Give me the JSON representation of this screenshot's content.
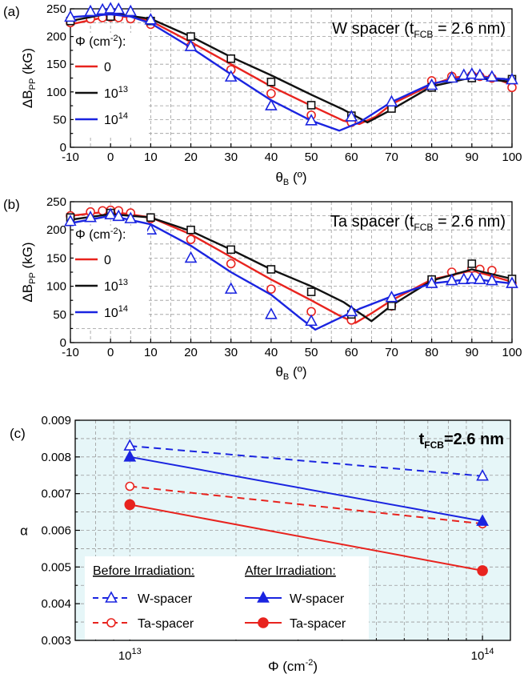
{
  "chart_data": [
    {
      "type": "line",
      "panel_label": "(a)",
      "title": "W spacer (t",
      "title_sub": "FCB",
      "title_tail": " = 2.6 nm)",
      "legend_title": "Φ (cm",
      "legend_title_sup": "-2",
      "legend_title_tail": "):",
      "ylabel": "ΔB",
      "ylabel_sub": "PP",
      "ylabel_tail": " (kG)",
      "xlabel": "θ",
      "xlabel_sub": "B",
      "xlabel_tail": " (º)",
      "xlim": [
        -10,
        100
      ],
      "ylim": [
        0,
        250
      ],
      "xticks": [
        -10,
        0,
        10,
        20,
        30,
        40,
        50,
        60,
        70,
        80,
        90,
        100
      ],
      "yticks": [
        0,
        25,
        50,
        75,
        100,
        125,
        150,
        175,
        200,
        225,
        250
      ],
      "ytick_labels": [
        "0",
        "",
        "50",
        "",
        "100",
        "",
        "150",
        "",
        "200",
        "",
        "250"
      ],
      "series": [
        {
          "name": "0",
          "name_sup": "",
          "color": "#e8231e",
          "marker": "circle",
          "points": [
            [
              -10,
              225
            ],
            [
              -5,
              232
            ],
            [
              -2,
              234
            ],
            [
              0,
              235
            ],
            [
              2,
              234
            ],
            [
              5,
              232
            ],
            [
              10,
              222
            ],
            [
              20,
              183
            ],
            [
              30,
              140
            ],
            [
              40,
              97
            ],
            [
              50,
              58
            ],
            [
              60,
              45
            ],
            [
              70,
              73
            ],
            [
              80,
              120
            ],
            [
              85,
              128
            ],
            [
              90,
              130
            ],
            [
              92,
              128
            ],
            [
              95,
              125
            ],
            [
              100,
              108
            ]
          ],
          "fit": [
            [
              -10,
              222
            ],
            [
              0,
              237
            ],
            [
              5,
              235
            ],
            [
              10,
              228
            ],
            [
              20,
              190
            ],
            [
              30,
              150
            ],
            [
              40,
              110
            ],
            [
              50,
              75
            ],
            [
              58,
              48
            ],
            [
              62,
              42
            ],
            [
              66,
              55
            ],
            [
              70,
              78
            ],
            [
              80,
              113
            ],
            [
              85,
              125
            ],
            [
              90,
              130
            ],
            [
              95,
              126
            ],
            [
              100,
              113
            ]
          ]
        },
        {
          "name": "10",
          "name_sup": "13",
          "color": "#111111",
          "marker": "square",
          "points": [
            [
              -10,
              228
            ],
            [
              0,
              236
            ],
            [
              10,
              228
            ],
            [
              20,
              200
            ],
            [
              30,
              160
            ],
            [
              40,
              118
            ],
            [
              50,
              76
            ],
            [
              60,
              57
            ],
            [
              70,
              70
            ],
            [
              80,
              108
            ],
            [
              90,
              125
            ],
            [
              100,
              123
            ]
          ],
          "fit": [
            [
              -10,
              228
            ],
            [
              0,
              242
            ],
            [
              10,
              232
            ],
            [
              20,
              200
            ],
            [
              30,
              163
            ],
            [
              40,
              130
            ],
            [
              50,
              95
            ],
            [
              58,
              68
            ],
            [
              64,
              45
            ],
            [
              70,
              68
            ],
            [
              80,
              110
            ],
            [
              90,
              126
            ],
            [
              100,
              118
            ]
          ]
        },
        {
          "name": "10",
          "name_sup": "14",
          "color": "#1a24e0",
          "marker": "triangle",
          "points": [
            [
              -10,
              235
            ],
            [
              -5,
              245
            ],
            [
              -2,
              248
            ],
            [
              0,
              250
            ],
            [
              2,
              249
            ],
            [
              5,
              245
            ],
            [
              10,
              230
            ],
            [
              20,
              182
            ],
            [
              30,
              127
            ],
            [
              40,
              75
            ],
            [
              50,
              48
            ],
            [
              60,
              55
            ],
            [
              70,
              82
            ],
            [
              80,
              112
            ],
            [
              85,
              125
            ],
            [
              88,
              130
            ],
            [
              90,
              132
            ],
            [
              92,
              130
            ],
            [
              95,
              127
            ],
            [
              100,
              122
            ]
          ],
          "fit": [
            [
              -10,
              235
            ],
            [
              0,
              240
            ],
            [
              5,
              236
            ],
            [
              10,
              224
            ],
            [
              20,
              180
            ],
            [
              30,
              132
            ],
            [
              40,
              85
            ],
            [
              50,
              48
            ],
            [
              57,
              30
            ],
            [
              62,
              45
            ],
            [
              70,
              82
            ],
            [
              80,
              115
            ],
            [
              90,
              128
            ],
            [
              100,
              122
            ]
          ]
        }
      ]
    },
    {
      "type": "line",
      "panel_label": "(b)",
      "title": "Ta spacer (t",
      "title_sub": "FCB",
      "title_tail": " = 2.6 nm)",
      "legend_title": "Φ (cm",
      "legend_title_sup": "-2",
      "legend_title_tail": "):",
      "ylabel": "ΔB",
      "ylabel_sub": "PP",
      "ylabel_tail": " (kG)",
      "xlabel": "θ",
      "xlabel_sub": "B",
      "xlabel_tail": " (º)",
      "xlim": [
        -10,
        100
      ],
      "ylim": [
        0,
        250
      ],
      "xticks": [
        -10,
        0,
        10,
        20,
        30,
        40,
        50,
        60,
        70,
        80,
        90,
        100
      ],
      "yticks": [
        0,
        25,
        50,
        75,
        100,
        125,
        150,
        175,
        200,
        225,
        250
      ],
      "ytick_labels": [
        "0",
        "",
        "50",
        "",
        "100",
        "",
        "150",
        "",
        "200",
        "",
        "250"
      ],
      "series": [
        {
          "name": "0",
          "name_sup": "",
          "color": "#e8231e",
          "marker": "circle",
          "points": [
            [
              -10,
              225
            ],
            [
              -5,
              232
            ],
            [
              -2,
              234
            ],
            [
              0,
              235
            ],
            [
              2,
              234
            ],
            [
              5,
              230
            ],
            [
              10,
              220
            ],
            [
              20,
              183
            ],
            [
              30,
              140
            ],
            [
              40,
              95
            ],
            [
              50,
              55
            ],
            [
              60,
              40
            ],
            [
              70,
              65
            ],
            [
              80,
              110
            ],
            [
              85,
              125
            ],
            [
              90,
              132
            ],
            [
              92,
              130
            ],
            [
              95,
              128
            ],
            [
              100,
              105
            ]
          ],
          "fit": [
            [
              -10,
              225
            ],
            [
              0,
              233
            ],
            [
              10,
              222
            ],
            [
              20,
              192
            ],
            [
              30,
              152
            ],
            [
              40,
              112
            ],
            [
              50,
              75
            ],
            [
              57,
              48
            ],
            [
              61,
              35
            ],
            [
              65,
              52
            ],
            [
              70,
              75
            ],
            [
              80,
              112
            ],
            [
              90,
              128
            ],
            [
              100,
              108
            ]
          ]
        },
        {
          "name": "10",
          "name_sup": "13",
          "color": "#111111",
          "marker": "square",
          "points": [
            [
              -10,
              222
            ],
            [
              0,
              230
            ],
            [
              10,
              222
            ],
            [
              20,
              200
            ],
            [
              30,
              165
            ],
            [
              40,
              130
            ],
            [
              50,
              90
            ],
            [
              60,
              50
            ],
            [
              70,
              65
            ],
            [
              80,
              112
            ],
            [
              90,
              140
            ],
            [
              100,
              113
            ]
          ],
          "fit": [
            [
              -10,
              218
            ],
            [
              0,
              228
            ],
            [
              10,
              222
            ],
            [
              20,
              198
            ],
            [
              30,
              165
            ],
            [
              40,
              130
            ],
            [
              50,
              100
            ],
            [
              58,
              72
            ],
            [
              65,
              38
            ],
            [
              70,
              66
            ],
            [
              80,
              110
            ],
            [
              90,
              130
            ],
            [
              100,
              113
            ]
          ]
        },
        {
          "name": "10",
          "name_sup": "14",
          "color": "#1a24e0",
          "marker": "triangle",
          "points": [
            [
              -10,
              215
            ],
            [
              -5,
              222
            ],
            [
              0,
              227
            ],
            [
              2,
              224
            ],
            [
              5,
              220
            ],
            [
              10,
              200
            ],
            [
              20,
              150
            ],
            [
              30,
              95
            ],
            [
              40,
              50
            ],
            [
              50,
              38
            ],
            [
              60,
              55
            ],
            [
              70,
              80
            ],
            [
              80,
              105
            ],
            [
              85,
              110
            ],
            [
              88,
              112
            ],
            [
              90,
              113
            ],
            [
              92,
              112
            ],
            [
              95,
              110
            ],
            [
              100,
              105
            ]
          ],
          "fit": [
            [
              -10,
              212
            ],
            [
              0,
              225
            ],
            [
              10,
              210
            ],
            [
              20,
              172
            ],
            [
              30,
              125
            ],
            [
              40,
              85
            ],
            [
              47,
              45
            ],
            [
              51,
              23
            ],
            [
              56,
              40
            ],
            [
              62,
              60
            ],
            [
              70,
              82
            ],
            [
              80,
              105
            ],
            [
              90,
              113
            ],
            [
              100,
              105
            ]
          ]
        }
      ]
    },
    {
      "type": "line",
      "panel_label": "(c)",
      "title": "t",
      "title_sub": "FCB",
      "title_tail": "=2.6 nm",
      "ylabel": "α",
      "xlabel": "Φ (cm",
      "xlabel_sup": "-2",
      "xlabel_tail": ")",
      "xscale": "log",
      "xlim": [
        7000000000000,
        120000000000000
      ],
      "ylim": [
        0.003,
        0.009
      ],
      "xtick_labels": [
        {
          "base": "10",
          "exp": "13"
        },
        {
          "base": "10",
          "exp": "14"
        }
      ],
      "yticks": [
        0.003,
        0.004,
        0.005,
        0.006,
        0.007,
        0.008,
        0.009
      ],
      "ytick_labels": [
        "0.003",
        "0.004",
        "0.005",
        "0.006",
        "0.007",
        "0.008",
        "0.009"
      ],
      "legend_groups": [
        "Before Irradiation:",
        "After Irradiation:"
      ],
      "series": [
        {
          "name": "W-spacer",
          "group": "Before Irradiation:",
          "color": "#1a24e0",
          "marker": "triangle-open",
          "dashed": true,
          "x": [
            10000000000000,
            100000000000000
          ],
          "y": [
            0.0083,
            0.00748
          ]
        },
        {
          "name": "Ta-spacer",
          "group": "Before Irradiation:",
          "color": "#e8231e",
          "marker": "circle-open",
          "dashed": true,
          "x": [
            10000000000000,
            100000000000000
          ],
          "y": [
            0.0072,
            0.00618
          ]
        },
        {
          "name": "W-spacer",
          "group": "After Irradiation:",
          "color": "#1a24e0",
          "marker": "triangle-filled",
          "dashed": false,
          "x": [
            10000000000000,
            100000000000000
          ],
          "y": [
            0.008,
            0.00625
          ]
        },
        {
          "name": "Ta-spacer",
          "group": "After Irradiation:",
          "color": "#e8231e",
          "marker": "circle-filled",
          "dashed": false,
          "x": [
            10000000000000,
            100000000000000
          ],
          "y": [
            0.0067,
            0.0049
          ]
        }
      ],
      "background": "#e6f6f8"
    }
  ]
}
